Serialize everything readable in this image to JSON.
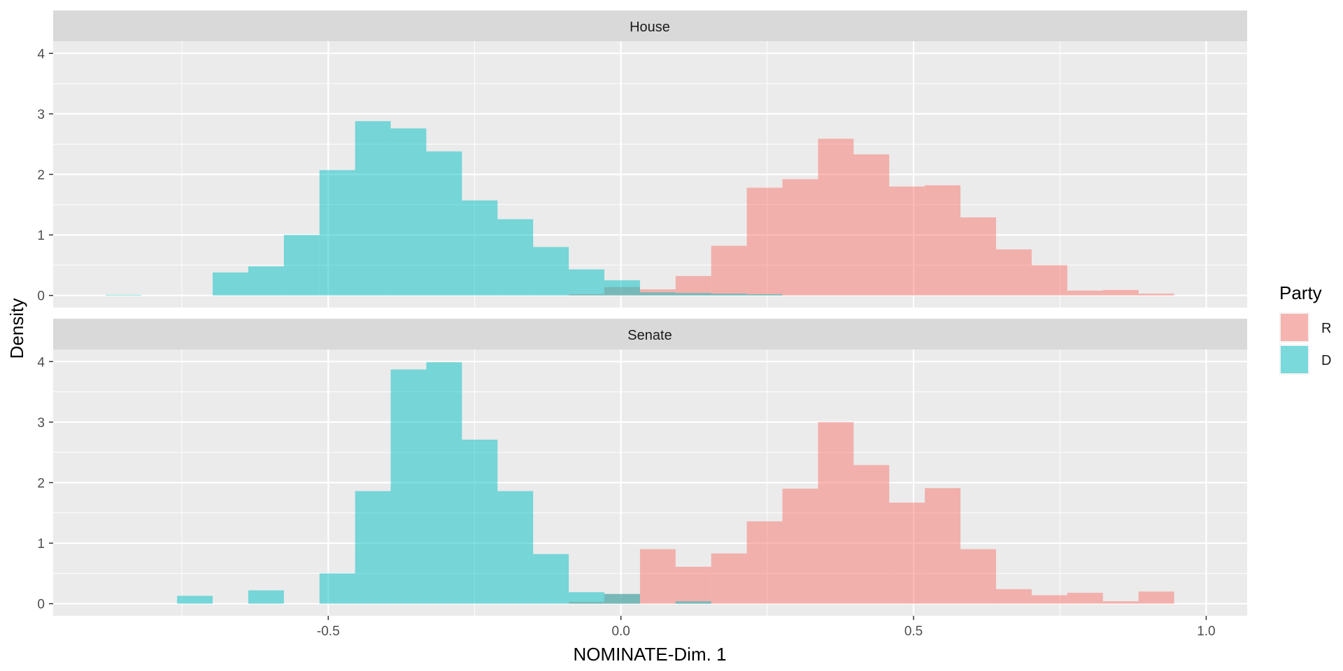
{
  "chart_data": {
    "type": "histogram",
    "xlabel": "NOMINATE-Dim. 1",
    "ylabel": "Density",
    "xlim": [
      -0.97,
      1.07
    ],
    "ylim": [
      -0.2,
      4.2
    ],
    "x_ticks": [
      -0.5,
      0.0,
      0.5,
      1.0
    ],
    "x_tick_labels": [
      "-0.5",
      "0.0",
      "0.5",
      "1.0"
    ],
    "y_ticks": [
      0,
      1,
      2,
      3,
      4
    ],
    "y_tick_labels": [
      "0",
      "1",
      "2",
      "3",
      "4"
    ],
    "grid": true,
    "legend": {
      "title": "Party",
      "position": "right",
      "entries": [
        {
          "label": "R",
          "color": "#F8766D"
        },
        {
          "label": "D",
          "color": "#00BFC4"
        }
      ]
    },
    "bin_start": -0.88,
    "bin_width": 0.06084,
    "panels": [
      {
        "strip": "House",
        "series": [
          {
            "name": "D",
            "color": "#00BFC4",
            "values": [
              0.01,
              0,
              0,
              0.38,
              0.48,
              1,
              2.07,
              2.88,
              2.76,
              2.38,
              1.57,
              1.26,
              0.8,
              0.43,
              0.25,
              0.05,
              0.04,
              0.03,
              0.02,
              0,
              0,
              0,
              0,
              0,
              0,
              0,
              0,
              0,
              0,
              0,
              0,
              0,
              0,
              0
            ]
          },
          {
            "name": "R",
            "color": "#F8766D",
            "values": [
              0,
              0,
              0,
              0,
              0,
              0,
              0,
              0,
              0,
              0,
              0,
              0,
              0,
              0.02,
              0.14,
              0.1,
              0.32,
              0.82,
              1.78,
              1.92,
              2.59,
              2.33,
              1.8,
              1.82,
              1.29,
              0.76,
              0.5,
              0.08,
              0.09,
              0.03,
              0,
              0,
              0,
              0
            ]
          }
        ]
      },
      {
        "strip": "Senate",
        "series": [
          {
            "name": "D",
            "color": "#00BFC4",
            "values": [
              0,
              0,
              0.13,
              0,
              0.22,
              0,
              0.5,
              1.86,
              3.87,
              3.99,
              2.71,
              1.86,
              0.82,
              0.19,
              0.16,
              0,
              0.04,
              0,
              0,
              0,
              0,
              0,
              0,
              0,
              0,
              0,
              0,
              0,
              0,
              0,
              0,
              0,
              0,
              0
            ]
          },
          {
            "name": "R",
            "color": "#F8766D",
            "values": [
              0,
              0,
              0,
              0,
              0,
              0,
              0,
              0,
              0,
              0,
              0,
              0,
              0,
              0.03,
              0.16,
              0.9,
              0.61,
              0.83,
              1.36,
              1.9,
              3,
              2.29,
              1.67,
              1.91,
              0.9,
              0.24,
              0.14,
              0.18,
              0.04,
              0.2,
              0,
              0,
              0,
              0
            ]
          }
        ]
      }
    ]
  }
}
